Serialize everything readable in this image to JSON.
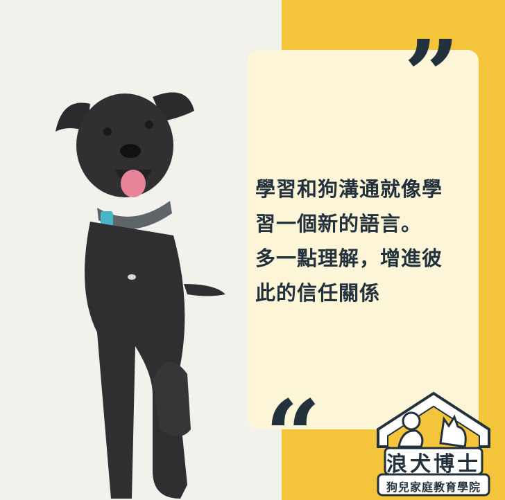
{
  "quote": {
    "lines": [
      "學習和狗溝通就像學",
      "習一個新的語言。",
      "多一點理解，增進彼",
      "此的信任關係"
    ]
  },
  "brand": {
    "name": "浪犬博士",
    "subtitle": "狗兒家庭教育學院"
  },
  "colors": {
    "accent": "#f4c53a",
    "card": "#fdf5d7",
    "text": "#22313b"
  }
}
